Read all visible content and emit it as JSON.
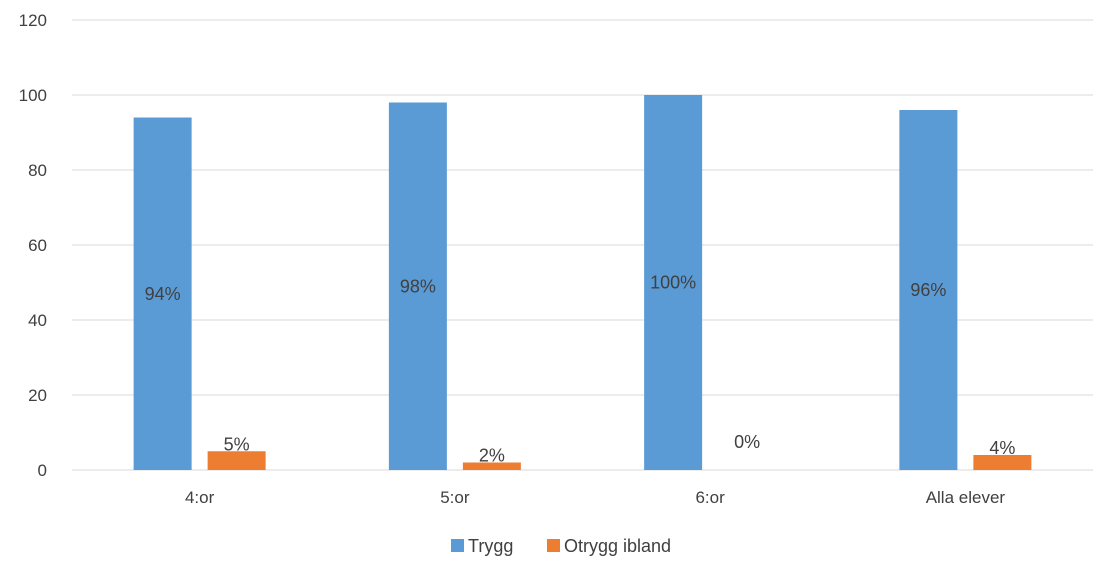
{
  "chart_data": {
    "type": "bar",
    "title": "",
    "xlabel": "",
    "ylabel": "",
    "categories": [
      "4:or",
      "5:or",
      "6:or",
      "Alla elever"
    ],
    "series": [
      {
        "name": "Trygg",
        "values": [
          94,
          98,
          100,
          96
        ],
        "labels": [
          "94%",
          "98%",
          "100%",
          "96%"
        ],
        "color": "#5B9BD5"
      },
      {
        "name": "Otrygg ibland",
        "values": [
          5,
          2,
          0,
          4
        ],
        "labels": [
          "5%",
          "2%",
          "0%",
          "4%"
        ],
        "color": "#ED7D31"
      }
    ],
    "ylim": [
      0,
      120
    ],
    "yticks": [
      0,
      20,
      40,
      60,
      80,
      100,
      120
    ],
    "grid": true,
    "legend_position": "bottom"
  }
}
